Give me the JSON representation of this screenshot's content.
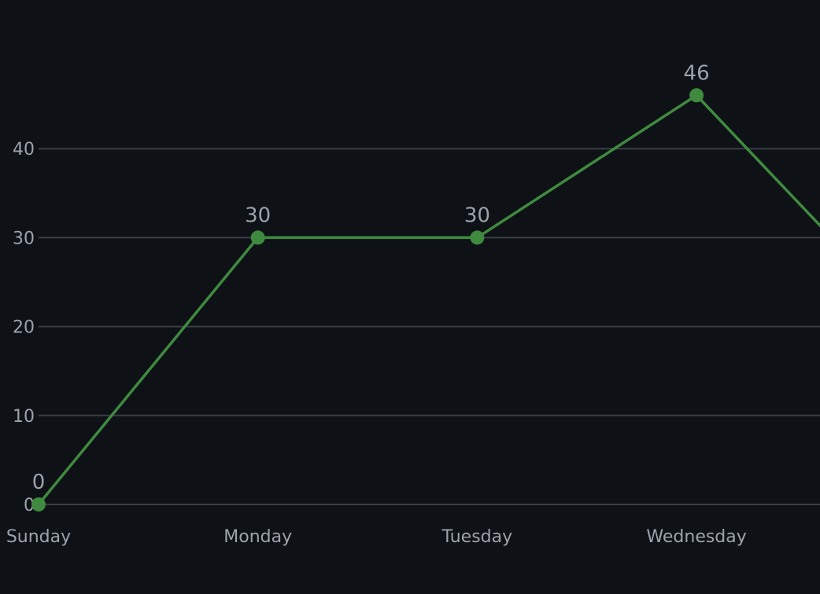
{
  "colors": {
    "background": "#0e1116",
    "line": "#3f8a3f",
    "grid": "#3a3f45",
    "text": "#9ca3ab"
  },
  "chart_data": {
    "type": "line",
    "categories": [
      "Sunday",
      "Monday",
      "Tuesday",
      "Wednesday"
    ],
    "series": [
      {
        "values": [
          0,
          30,
          30,
          46
        ],
        "data_labels": [
          "0",
          "30",
          "30",
          "46"
        ]
      }
    ],
    "continues_past_edge_to": 20,
    "y_ticks": [
      "0",
      "10",
      "20",
      "30",
      "40"
    ],
    "ylim": [
      0,
      40
    ],
    "grid": true,
    "legend": "none"
  }
}
